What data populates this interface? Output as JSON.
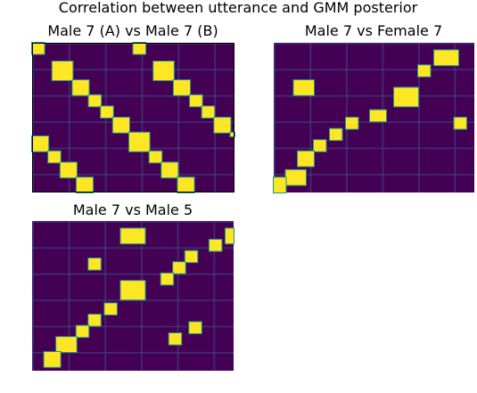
{
  "figure": {
    "suptitle": "Correlation between utterance and GMM posterior"
  },
  "colors": {
    "background": "#440154",
    "dark": "#3b518b",
    "mid": "#21908d",
    "bright": "#fde725",
    "frame": "#000000"
  },
  "chart_data": [
    {
      "type": "heatmap",
      "title": "Male 7 (A) vs Male 7 (B)",
      "colormap": "viridis",
      "value_range": [
        0,
        1
      ],
      "rows": 40,
      "cols": 50,
      "high_correlation_blocks": [
        [
          0,
          0,
          3,
          3
        ],
        [
          5,
          5,
          5,
          5
        ],
        [
          10,
          10,
          4,
          4
        ],
        [
          14,
          14,
          3,
          3
        ],
        [
          17,
          17,
          3,
          3
        ],
        [
          20,
          20,
          4,
          4
        ],
        [
          24,
          24,
          5,
          5
        ],
        [
          29,
          29,
          3,
          3
        ],
        [
          32,
          32,
          4,
          4
        ],
        [
          36,
          36,
          4,
          4
        ],
        [
          0,
          25,
          3,
          3
        ],
        [
          5,
          30,
          5,
          5
        ],
        [
          10,
          35,
          4,
          4
        ],
        [
          14,
          39,
          3,
          3
        ],
        [
          17,
          42,
          3,
          3
        ],
        [
          20,
          45,
          4,
          4
        ],
        [
          24,
          49,
          1,
          5
        ],
        [
          25,
          0,
          4,
          4
        ],
        [
          29,
          4,
          3,
          3
        ],
        [
          32,
          7,
          4,
          4
        ],
        [
          36,
          11,
          4,
          4
        ]
      ]
    },
    {
      "type": "heatmap",
      "title": "Male 7 vs Female 7",
      "colormap": "viridis",
      "value_range": [
        0,
        1
      ],
      "rows": 40,
      "cols": 50,
      "high_correlation_blocks": [
        [
          10,
          5,
          4,
          5
        ],
        [
          12,
          30,
          5,
          6
        ],
        [
          2,
          40,
          4,
          6
        ],
        [
          6,
          36,
          3,
          3
        ],
        [
          20,
          18,
          3,
          3
        ],
        [
          23,
          14,
          3,
          3
        ],
        [
          26,
          10,
          3,
          3
        ],
        [
          29,
          6,
          4,
          4
        ],
        [
          34,
          3,
          4,
          5
        ],
        [
          36,
          0,
          4,
          3
        ],
        [
          18,
          24,
          3,
          4
        ],
        [
          20,
          45,
          3,
          3
        ]
      ]
    },
    {
      "type": "heatmap",
      "title": "Male 7 vs Male 5",
      "colormap": "viridis",
      "value_range": [
        0,
        1
      ],
      "rows": 40,
      "cols": 50,
      "high_correlation_blocks": [
        [
          2,
          22,
          4,
          6
        ],
        [
          8,
          38,
          3,
          3
        ],
        [
          11,
          35,
          3,
          3
        ],
        [
          14,
          32,
          3,
          3
        ],
        [
          16,
          22,
          5,
          6
        ],
        [
          22,
          18,
          3,
          3
        ],
        [
          25,
          14,
          3,
          3
        ],
        [
          28,
          11,
          3,
          3
        ],
        [
          31,
          6,
          4,
          5
        ],
        [
          35,
          3,
          4,
          4
        ],
        [
          5,
          44,
          3,
          3
        ],
        [
          2,
          48,
          4,
          2
        ],
        [
          30,
          34,
          3,
          3
        ],
        [
          27,
          39,
          3,
          3
        ],
        [
          10,
          14,
          3,
          3
        ]
      ]
    }
  ]
}
